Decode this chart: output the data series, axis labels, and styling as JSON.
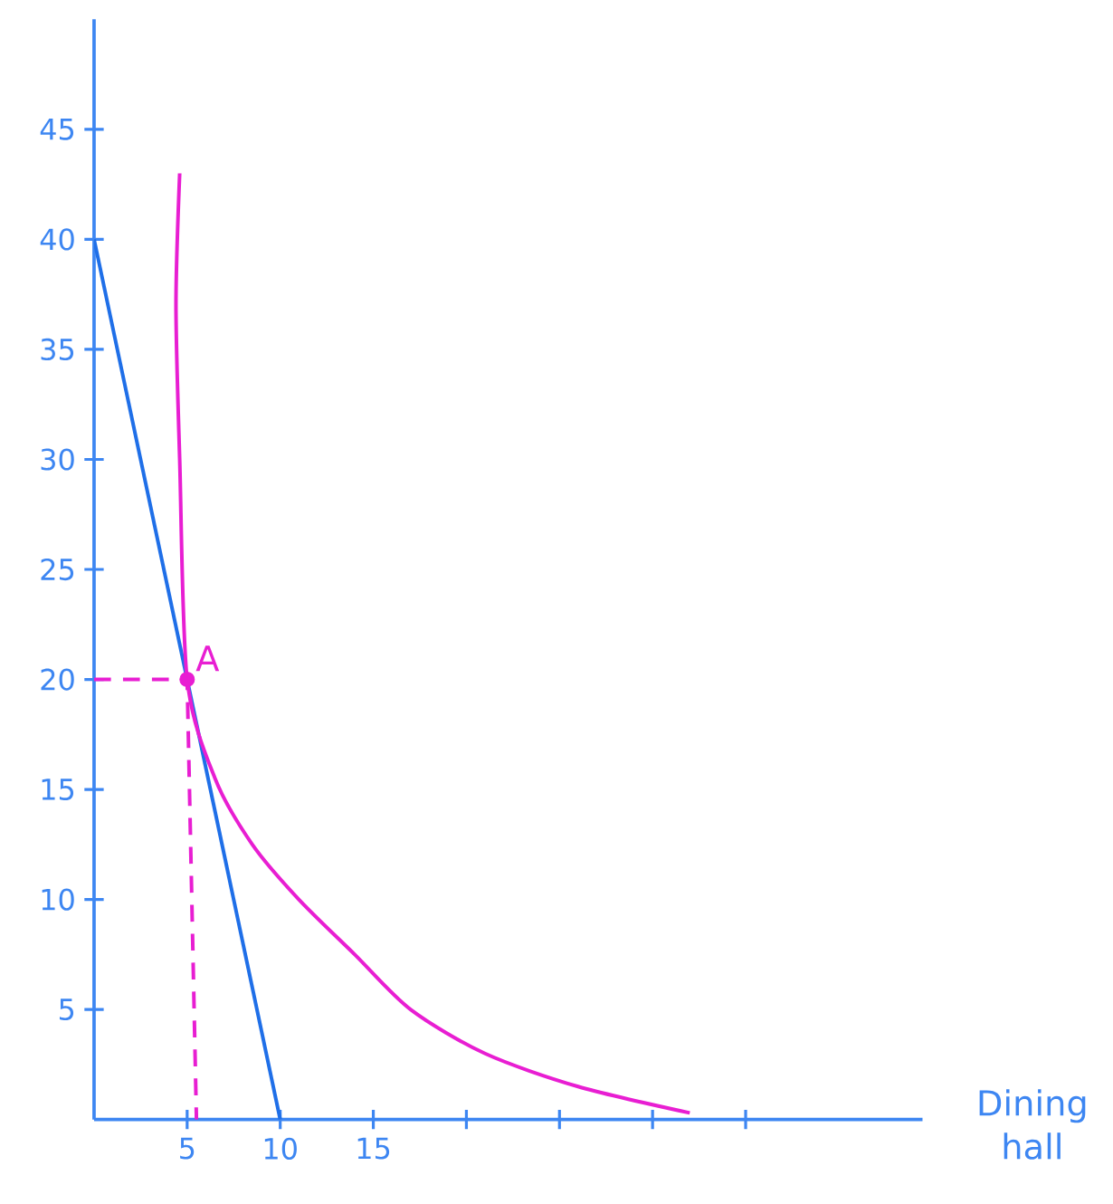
{
  "chart_data": {
    "type": "line",
    "xlabel": "Dining hall",
    "xlim": [
      0,
      44.5
    ],
    "ylim": [
      0,
      50
    ],
    "xticks": [
      5,
      10,
      15,
      {
        "value": 20,
        "label": null
      },
      {
        "value": 25,
        "label": null
      },
      {
        "value": 30,
        "label": null
      },
      {
        "value": 35,
        "label": null
      }
    ],
    "yticks": [
      5,
      10,
      15,
      20,
      25,
      30,
      35,
      40,
      45
    ],
    "series": [
      {
        "color": "#1f6fe8",
        "x": [
          0,
          10
        ],
        "values": [
          40,
          0
        ],
        "marker": "none",
        "line_style": "solid"
      },
      {
        "color": "#e81ed2",
        "x": [
          4.6,
          4.4,
          4.6,
          5,
          6.5,
          8.5,
          11,
          14,
          17,
          21,
          26,
          32
        ],
        "values": [
          43,
          37,
          30,
          20,
          15.5,
          12.5,
          10,
          7.5,
          5,
          3,
          1.5,
          0.3
        ],
        "marker": "none",
        "line_style": "solid"
      },
      {
        "color": "#e81ed2",
        "x": [
          0,
          5,
          5.5
        ],
        "values": [
          20,
          20,
          0
        ],
        "marker": "none",
        "line_style": "dashed"
      },
      {
        "type": "scatter",
        "color": "#e81ed2",
        "x": [
          5
        ],
        "values": [
          20
        ],
        "marker": "circle"
      }
    ],
    "annotations": [
      {
        "text": "A",
        "x": 5,
        "y": 20
      }
    ]
  }
}
